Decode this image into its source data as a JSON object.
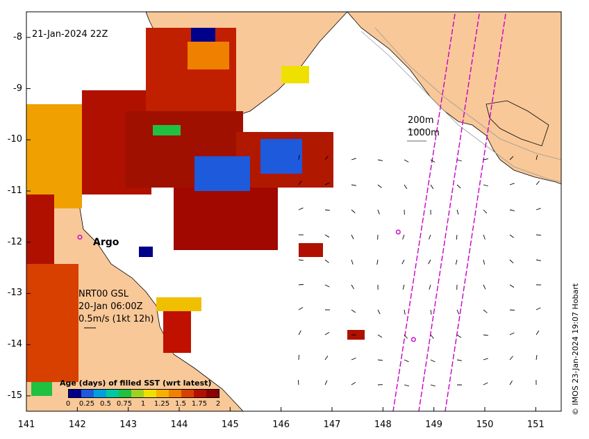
{
  "map": {
    "timestamp": "21-Jan-2024 22Z",
    "credit": "© IMOS 23-Jan-2024 19:07 Hobart",
    "x_ticks": [
      "141",
      "142",
      "143",
      "144",
      "145",
      "146",
      "147",
      "148",
      "149",
      "150",
      "151"
    ],
    "y_ticks": [
      "-8",
      "-9",
      "-10",
      "-11",
      "-12",
      "-13",
      "-14",
      "-15"
    ],
    "x_range": [
      141,
      151.5
    ],
    "y_range": [
      -15.3,
      -7.5
    ],
    "depth_labels": {
      "shallow": "200m",
      "deep": "1000m"
    },
    "argo_label": "Argo",
    "current_info": {
      "source": "NRT00 GSL",
      "time": "20-Jan 06:00Z",
      "scale": "0.5m/s (1kt 12h)"
    },
    "argo_floats": [
      {
        "lon": 142.05,
        "lat": -11.9
      },
      {
        "lon": 148.3,
        "lat": -11.8
      },
      {
        "lon": 148.6,
        "lat": -13.9
      }
    ]
  },
  "legend": {
    "title": "Age (days) of filled SST (wrt latest)",
    "ticks": [
      "0",
      "0.25",
      "0.5",
      "0.75",
      "1",
      "1.25",
      "1.5",
      "1.75",
      "2"
    ],
    "colors": [
      "#00008b",
      "#1e5adc",
      "#00a0e0",
      "#00c8a0",
      "#20c040",
      "#a0d020",
      "#f0e000",
      "#f8b000",
      "#f08000",
      "#d84000",
      "#b01000",
      "#8b0000"
    ]
  },
  "colors": {
    "land": "#f8c898",
    "ocean": "#ffffff",
    "glider_track": "#c800c8"
  }
}
